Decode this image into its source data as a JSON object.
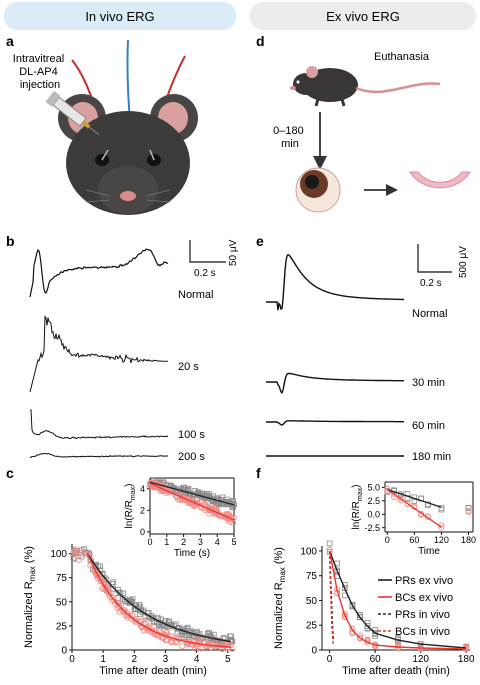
{
  "headers": {
    "left": "In vivo ERG",
    "right": "Ex vivo ERG",
    "left_color": "#d9ecf7",
    "right_color": "#ececec"
  },
  "panel_letters": [
    "a",
    "b",
    "c",
    "d",
    "e",
    "f"
  ],
  "panel_a": {
    "injection_label_lines": [
      "Intravitreal",
      "DL-AP4",
      "injection"
    ]
  },
  "panel_d": {
    "euthanasia_label": "Euthanasia",
    "time_label_lines": [
      "0–180",
      "min"
    ]
  },
  "panel_b": {
    "scale_time": "0.2 s",
    "scale_voltage": "50 μV",
    "traces": [
      {
        "label": "Normal"
      },
      {
        "label": "20 s"
      },
      {
        "label": "100 s"
      },
      {
        "label": "200 s"
      }
    ]
  },
  "panel_e": {
    "scale_time": "0.2 s",
    "scale_voltage": "500 μV",
    "traces": [
      {
        "label": "Normal"
      },
      {
        "label": "30 min"
      },
      {
        "label": "60 min"
      },
      {
        "label": "180 min"
      }
    ]
  },
  "colors": {
    "pr": "#222222",
    "bc": "#e8372f",
    "pr_marker": "#8a8a8a",
    "bc_marker": "#f08a84"
  },
  "chart_data": [
    {
      "panel": "c",
      "type": "scatter",
      "xlabel": "Time after death (min)",
      "ylabel": "Normalized R",
      "ylabel_sub": "max",
      "ylabel_unit": "(%)",
      "xlim": [
        0,
        5.2
      ],
      "ylim": [
        0,
        110
      ],
      "xticks": [
        0,
        1,
        2,
        3,
        4,
        5
      ],
      "yticks": [
        0,
        25,
        50,
        75,
        100
      ],
      "series": [
        {
          "marker": "square",
          "fit_tau_min": 1.9,
          "fit_t0_min": 0.5
        },
        {
          "marker": "circle",
          "fit_tau_min": 1.3,
          "fit_t0_min": 0.5
        }
      ],
      "inset": {
        "xlabel": "Time (s)",
        "ylabel": "ln(R/R",
        "ylabel_sub": "max",
        "ylabel_end": ")",
        "xlim": [
          0,
          5
        ],
        "ylim": [
          -0.2,
          5
        ],
        "xticks": [
          0,
          1,
          2,
          3,
          4,
          5
        ],
        "yticks": [
          0,
          2,
          4
        ],
        "lines": [
          {
            "x": [
              0,
              5
            ],
            "y": [
              4.6,
              2.5
            ]
          },
          {
            "x": [
              0,
              5
            ],
            "y": [
              4.5,
              1.1
            ]
          }
        ]
      }
    },
    {
      "panel": "f",
      "type": "scatter",
      "xlabel": "Time after death (min)",
      "ylabel": "Normalized R",
      "ylabel_sub": "max",
      "ylabel_unit": "(%)",
      "xlim": [
        -10,
        185
      ],
      "ylim": [
        0,
        105
      ],
      "xticks": [
        0,
        60,
        120,
        180
      ],
      "yticks": [
        0,
        25,
        50,
        75,
        100
      ],
      "legend_position": "right",
      "series": [
        {
          "name": "PRs ex vivo",
          "style": "solid",
          "x": [
            0,
            10,
            20,
            30,
            40,
            50,
            60,
            90,
            120,
            180
          ],
          "y": [
            100,
            80,
            62,
            45,
            33,
            24,
            17,
            10,
            6,
            2
          ]
        },
        {
          "name": "BCs ex vivo",
          "style": "solid",
          "x": [
            0,
            10,
            20,
            30,
            40,
            50,
            60,
            90,
            120,
            180
          ],
          "y": [
            100,
            60,
            35,
            20,
            12,
            8,
            5,
            3,
            2,
            1
          ]
        },
        {
          "name": "PRs in vivo",
          "style": "dashed",
          "x": [
            0,
            1,
            2,
            3,
            4,
            5
          ],
          "y": [
            100,
            80,
            60,
            40,
            22,
            10
          ]
        },
        {
          "name": "BCs in vivo",
          "style": "dashed",
          "x": [
            0,
            1,
            2,
            3,
            4,
            5
          ],
          "y": [
            100,
            70,
            45,
            25,
            12,
            5
          ]
        }
      ],
      "inset": {
        "xlabel": "Time",
        "ylabel": "ln(R/R",
        "ylabel_sub": "max",
        "ylabel_end": ")",
        "xlim": [
          -5,
          190
        ],
        "ylim": [
          -3.3,
          6
        ],
        "xticks": [
          0,
          60,
          120,
          180
        ],
        "yticks": [
          -2.5,
          0.0,
          2.5,
          5.0
        ],
        "ytick_labels": [
          "-2.5",
          "0.0",
          "2.5",
          "5.0"
        ],
        "lines": [
          {
            "x": [
              0,
              120
            ],
            "y": [
              4.6,
              1.3
            ]
          },
          {
            "x": [
              0,
              120
            ],
            "y": [
              4.6,
              -2.4
            ]
          }
        ]
      }
    }
  ]
}
